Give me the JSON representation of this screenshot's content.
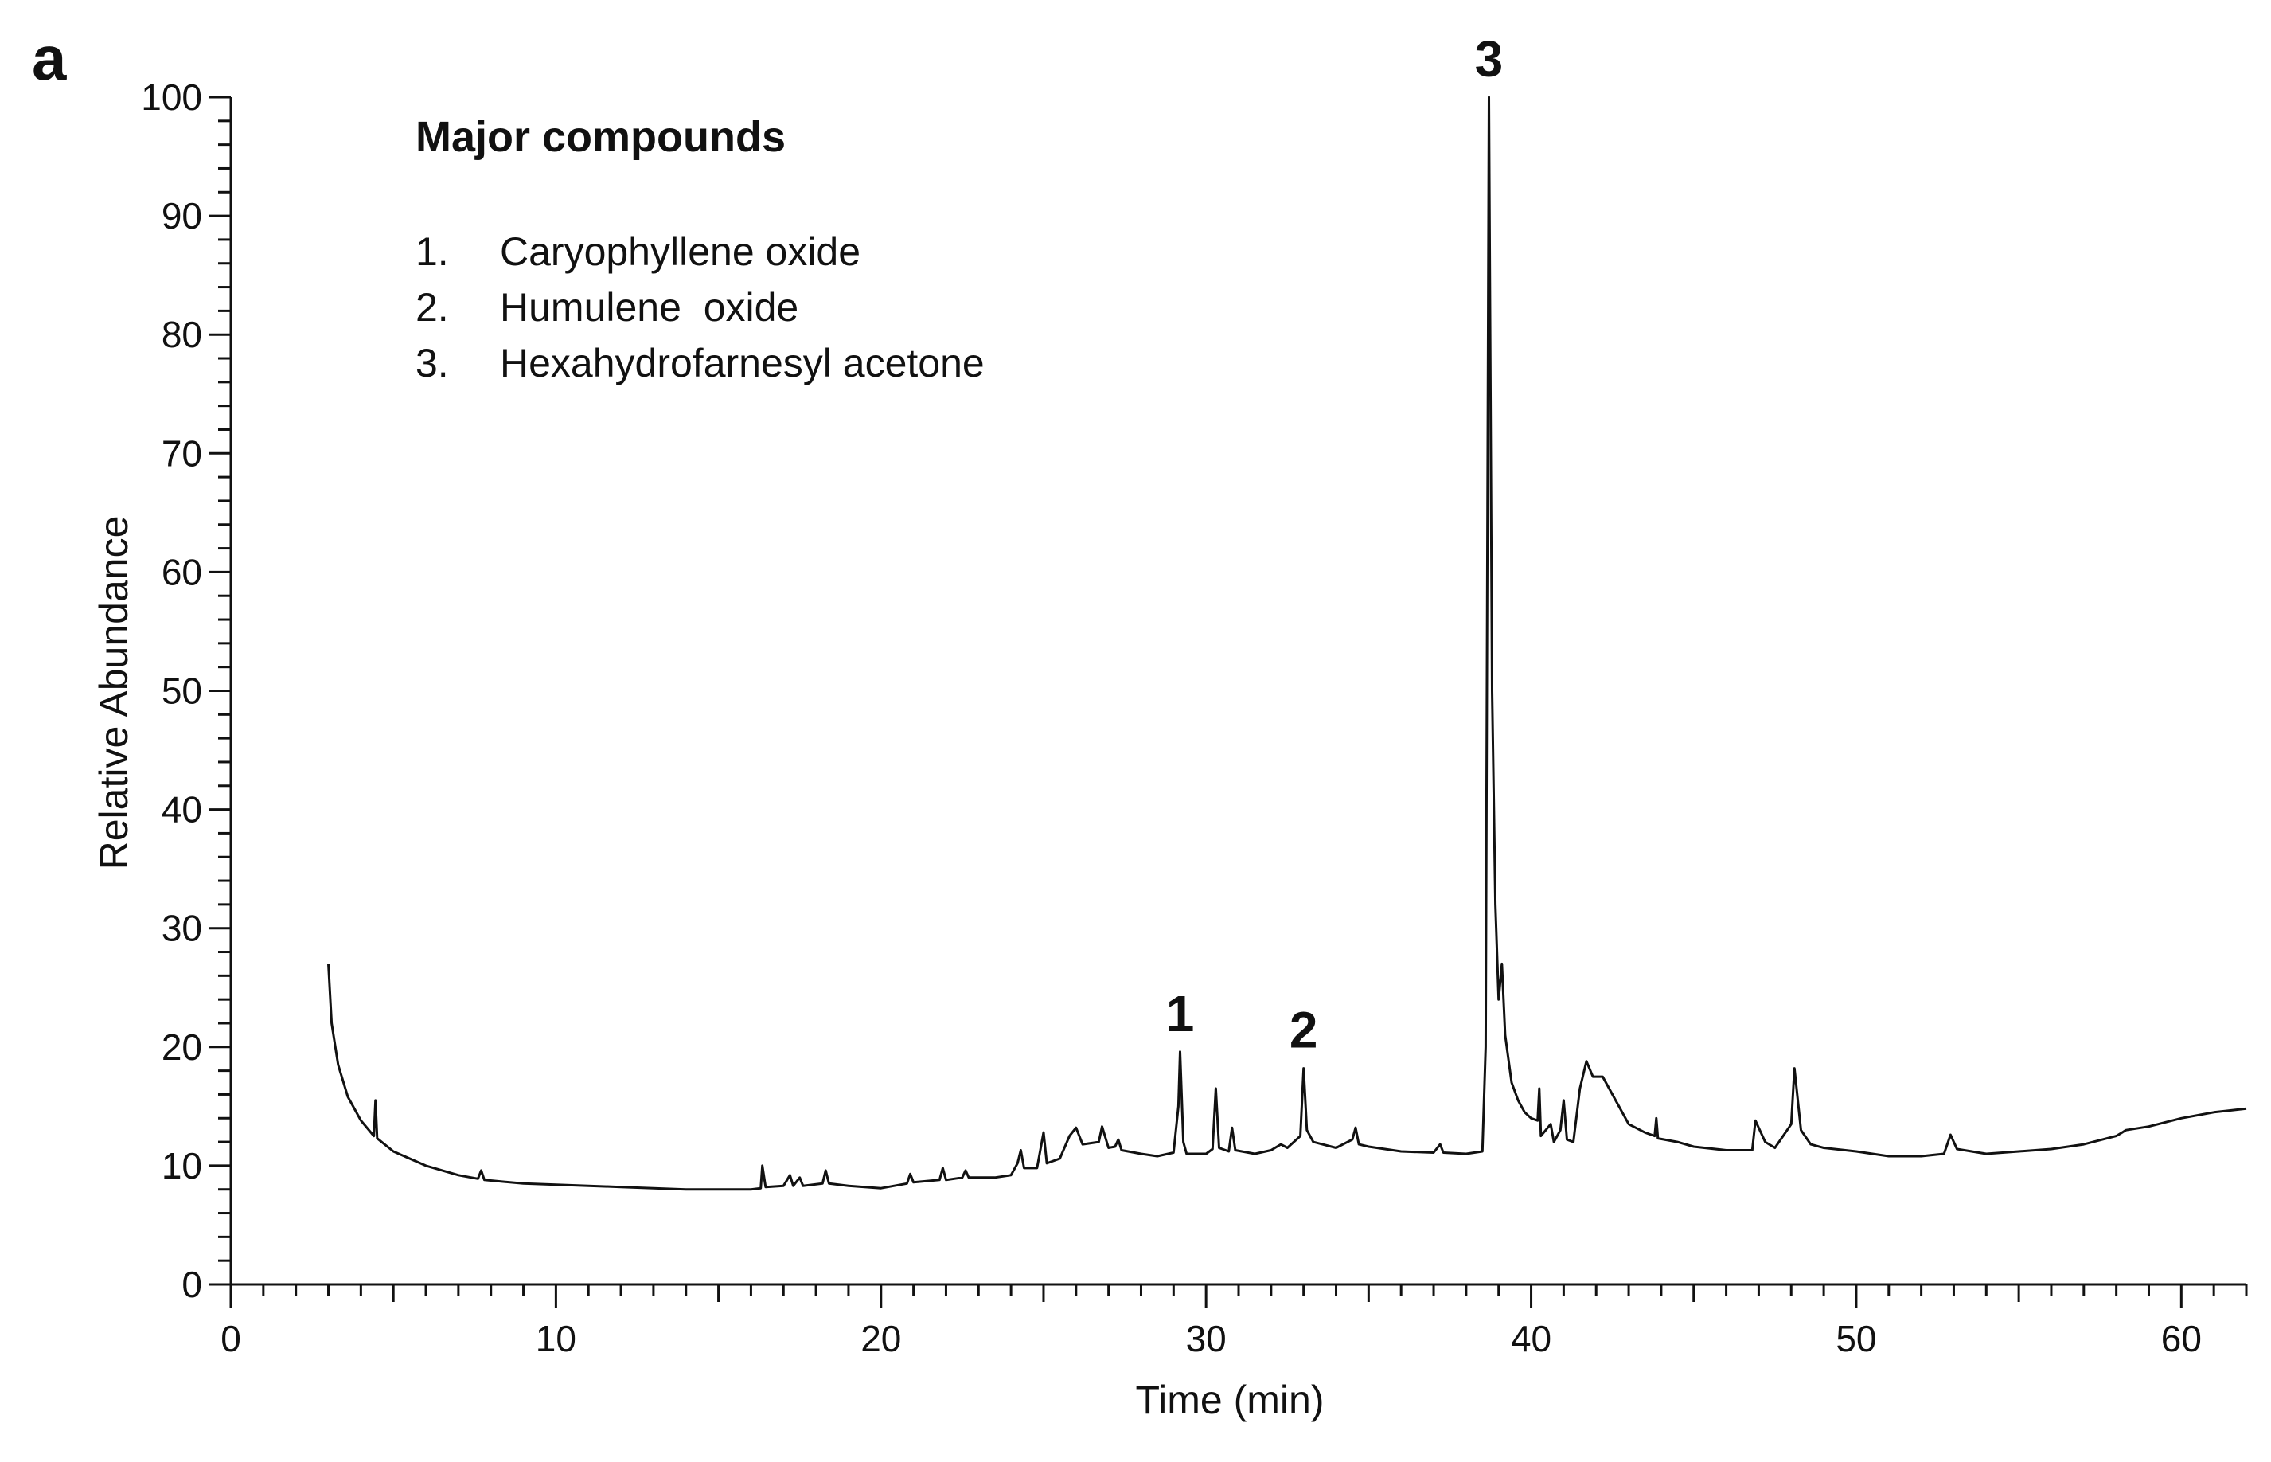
{
  "panel_label": "a",
  "legend": {
    "title": "Major compounds",
    "items": [
      {
        "num": "1.",
        "name": "Caryophyllene oxide"
      },
      {
        "num": "2.",
        "name": "Humulene  oxide"
      },
      {
        "num": "3.",
        "name": "Hexahydrofarnesyl acetone"
      }
    ]
  },
  "colors": {
    "trace": "#111111",
    "axis": "#111111"
  },
  "chart_data": {
    "type": "line",
    "xlabel": "Time  (min)",
    "ylabel": "Relative Abundance",
    "xlim": [
      0,
      62
    ],
    "ylim": [
      0,
      100
    ],
    "xticks": [
      0,
      10,
      20,
      30,
      40,
      50,
      60
    ],
    "xtick_labels": [
      "0",
      "10",
      "20",
      "30",
      "40",
      "50",
      "60"
    ],
    "yticks": [
      0,
      10,
      20,
      30,
      40,
      50,
      60,
      70,
      80,
      90,
      100
    ],
    "ytick_labels": [
      "0",
      "10",
      "20",
      "30",
      "40",
      "50",
      "60",
      "70",
      "80",
      "90",
      "100"
    ],
    "grid": false,
    "peak_annotations": [
      {
        "label": "1",
        "x": 29.2,
        "y": 19.6
      },
      {
        "label": "2",
        "x": 33.0,
        "y": 18.2
      },
      {
        "label": "3",
        "x": 38.7,
        "y": 100
      }
    ],
    "series": [
      {
        "points": [
          [
            3.0,
            27.0
          ],
          [
            3.1,
            22.0
          ],
          [
            3.3,
            18.5
          ],
          [
            3.6,
            15.8
          ],
          [
            4.0,
            13.8
          ],
          [
            4.4,
            12.5
          ],
          [
            4.45,
            15.5
          ],
          [
            4.5,
            12.3
          ],
          [
            5.0,
            11.2
          ],
          [
            6.0,
            10.0
          ],
          [
            7.0,
            9.2
          ],
          [
            7.6,
            8.9
          ],
          [
            7.7,
            9.6
          ],
          [
            7.8,
            8.8
          ],
          [
            9.0,
            8.5
          ],
          [
            10.0,
            8.4
          ],
          [
            11.0,
            8.3
          ],
          [
            12.0,
            8.2
          ],
          [
            13.0,
            8.1
          ],
          [
            14.0,
            8.0
          ],
          [
            15.0,
            8.0
          ],
          [
            16.0,
            8.0
          ],
          [
            16.3,
            8.1
          ],
          [
            16.35,
            10.0
          ],
          [
            16.45,
            8.2
          ],
          [
            17.0,
            8.3
          ],
          [
            17.2,
            9.2
          ],
          [
            17.3,
            8.3
          ],
          [
            17.5,
            9.0
          ],
          [
            17.6,
            8.3
          ],
          [
            18.2,
            8.5
          ],
          [
            18.3,
            9.6
          ],
          [
            18.4,
            8.5
          ],
          [
            19.0,
            8.3
          ],
          [
            20.0,
            8.1
          ],
          [
            20.8,
            8.5
          ],
          [
            20.9,
            9.3
          ],
          [
            21.0,
            8.6
          ],
          [
            21.8,
            8.8
          ],
          [
            21.9,
            9.8
          ],
          [
            22.0,
            8.8
          ],
          [
            22.5,
            9.0
          ],
          [
            22.6,
            9.6
          ],
          [
            22.7,
            9.0
          ],
          [
            23.5,
            9.0
          ],
          [
            24.0,
            9.2
          ],
          [
            24.2,
            10.2
          ],
          [
            24.3,
            11.3
          ],
          [
            24.4,
            9.8
          ],
          [
            24.8,
            9.8
          ],
          [
            25.0,
            12.8
          ],
          [
            25.1,
            10.2
          ],
          [
            25.5,
            10.6
          ],
          [
            25.8,
            12.5
          ],
          [
            26.0,
            13.2
          ],
          [
            26.2,
            11.8
          ],
          [
            26.7,
            12.0
          ],
          [
            26.8,
            13.3
          ],
          [
            27.0,
            11.5
          ],
          [
            27.2,
            11.6
          ],
          [
            27.3,
            12.2
          ],
          [
            27.4,
            11.3
          ],
          [
            28.0,
            11.0
          ],
          [
            28.5,
            10.8
          ],
          [
            29.0,
            11.1
          ],
          [
            29.15,
            15.0
          ],
          [
            29.2,
            19.6
          ],
          [
            29.3,
            12.0
          ],
          [
            29.4,
            11.0
          ],
          [
            30.0,
            11.0
          ],
          [
            30.2,
            11.4
          ],
          [
            30.3,
            16.5
          ],
          [
            30.4,
            11.5
          ],
          [
            30.7,
            11.2
          ],
          [
            30.8,
            13.2
          ],
          [
            30.9,
            11.3
          ],
          [
            31.5,
            11.0
          ],
          [
            32.0,
            11.3
          ],
          [
            32.3,
            11.8
          ],
          [
            32.5,
            11.5
          ],
          [
            32.9,
            12.5
          ],
          [
            33.0,
            18.2
          ],
          [
            33.1,
            13.0
          ],
          [
            33.3,
            12.0
          ],
          [
            34.0,
            11.5
          ],
          [
            34.5,
            12.2
          ],
          [
            34.6,
            13.2
          ],
          [
            34.7,
            11.8
          ],
          [
            35.0,
            11.6
          ],
          [
            36.0,
            11.2
          ],
          [
            37.0,
            11.1
          ],
          [
            37.2,
            11.8
          ],
          [
            37.3,
            11.1
          ],
          [
            38.0,
            11.0
          ],
          [
            38.5,
            11.2
          ],
          [
            38.6,
            20.0
          ],
          [
            38.7,
            100.0
          ],
          [
            38.8,
            50.0
          ],
          [
            38.9,
            32.0
          ],
          [
            39.0,
            24.0
          ],
          [
            39.1,
            27.0
          ],
          [
            39.2,
            21.0
          ],
          [
            39.4,
            17.0
          ],
          [
            39.6,
            15.5
          ],
          [
            39.8,
            14.5
          ],
          [
            40.0,
            14.0
          ],
          [
            40.2,
            13.8
          ],
          [
            40.25,
            16.5
          ],
          [
            40.3,
            12.5
          ],
          [
            40.6,
            13.5
          ],
          [
            40.7,
            12.0
          ],
          [
            40.9,
            13.0
          ],
          [
            41.0,
            15.5
          ],
          [
            41.1,
            12.2
          ],
          [
            41.3,
            12.0
          ],
          [
            41.5,
            16.5
          ],
          [
            41.7,
            18.8
          ],
          [
            41.9,
            17.5
          ],
          [
            42.2,
            17.5
          ],
          [
            42.5,
            16.0
          ],
          [
            43.0,
            13.5
          ],
          [
            43.5,
            12.8
          ],
          [
            43.8,
            12.5
          ],
          [
            43.85,
            14.0
          ],
          [
            43.9,
            12.3
          ],
          [
            44.5,
            12.0
          ],
          [
            45.0,
            11.6
          ],
          [
            46.0,
            11.3
          ],
          [
            46.8,
            11.3
          ],
          [
            46.9,
            13.8
          ],
          [
            47.0,
            13.2
          ],
          [
            47.2,
            12.0
          ],
          [
            47.5,
            11.5
          ],
          [
            48.0,
            13.5
          ],
          [
            48.1,
            18.2
          ],
          [
            48.3,
            13.0
          ],
          [
            48.6,
            11.8
          ],
          [
            49.0,
            11.5
          ],
          [
            50.0,
            11.2
          ],
          [
            51.0,
            10.8
          ],
          [
            52.0,
            10.8
          ],
          [
            52.7,
            11.0
          ],
          [
            52.9,
            12.6
          ],
          [
            53.1,
            11.4
          ],
          [
            54.0,
            11.0
          ],
          [
            55.0,
            11.2
          ],
          [
            56.0,
            11.4
          ],
          [
            57.0,
            11.8
          ],
          [
            58.0,
            12.5
          ],
          [
            58.3,
            13.0
          ],
          [
            59.0,
            13.3
          ],
          [
            60.0,
            14.0
          ],
          [
            61.0,
            14.5
          ],
          [
            62.0,
            14.8
          ]
        ]
      }
    ]
  }
}
